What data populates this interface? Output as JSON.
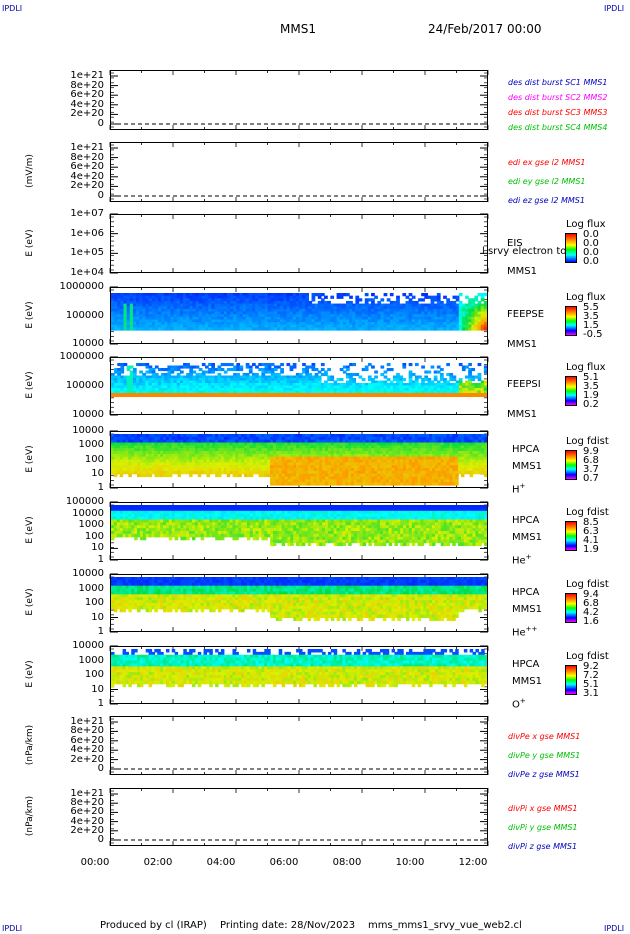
{
  "header": {
    "corner_label": "IPDLI",
    "spacecraft": "MMS1",
    "datetime": "24/Feb/2017 00:00"
  },
  "footer": {
    "produced_by": "Produced by cl (IRAP)",
    "printing_date": "Printing date: 28/Nov/2023",
    "script_name": "mms_mms1_srvy_vue_web2.cl"
  },
  "colors": {
    "mms1": "#0000c0",
    "mms2": "#ff00ff",
    "mms3": "#ff0000",
    "mms4": "#00c000",
    "x": "#ff0000",
    "y": "#00c000",
    "z": "#0000c0"
  },
  "chart_data": [
    {
      "type": "line",
      "panel": "des-dist",
      "ylabel": "",
      "yticks": [
        "1e+21",
        "8e+20",
        "6e+20",
        "4e+20",
        "2e+20",
        "0"
      ],
      "ylim": [
        0,
        1e+21
      ],
      "series": [
        {
          "name": "des dist burst SC1 MMS1",
          "values": []
        },
        {
          "name": "des dist burst SC2 MMS2",
          "values": []
        },
        {
          "name": "des dist burst SC3 MMS3",
          "values": []
        },
        {
          "name": "des dist burst SC4 MMS4",
          "values": []
        }
      ]
    },
    {
      "type": "line",
      "panel": "edi",
      "ylabel": "(mV/m)",
      "yticks": [
        "1e+21",
        "8e+20",
        "6e+20",
        "4e+20",
        "2e+20",
        "0"
      ],
      "ylim": [
        0,
        1e+21
      ],
      "series": [
        {
          "name": "edi ex gse l2 MMS1",
          "values": []
        },
        {
          "name": "edi ey gse l2 MMS1",
          "values": []
        },
        {
          "name": "edi ez gse l2 MMS1",
          "values": []
        }
      ]
    },
    {
      "type": "heatmap",
      "panel": "eis",
      "ylabel": "E (eV)",
      "yticks": [
        "1e+07",
        "1e+06",
        "1e+05",
        "1e+04"
      ],
      "side_labels": [
        "EIS",
        "MMS1"
      ],
      "overlay_text": "l srvy electron to",
      "colorbar_title": "Log flux",
      "colorbar_ticks": [
        "0.0",
        "0.0",
        "0.0",
        "0.0"
      ]
    },
    {
      "type": "heatmap",
      "panel": "feepse",
      "ylabel": "E (eV)",
      "yticks": [
        "1000000",
        "100000",
        "10000"
      ],
      "side_labels": [
        "FEEPSE",
        "MMS1"
      ],
      "colorbar_title": "Log flux",
      "colorbar_ticks": [
        "5.5",
        "3.5",
        "1.5",
        "-0.5"
      ]
    },
    {
      "type": "heatmap",
      "panel": "feepsi",
      "ylabel": "E (eV)",
      "yticks": [
        "1000000",
        "100000",
        "10000"
      ],
      "side_labels": [
        "FEEPSI",
        "MMS1"
      ],
      "colorbar_title": "Log flux",
      "colorbar_ticks": [
        "5.1",
        "3.5",
        "1.9",
        "0.2"
      ]
    },
    {
      "type": "heatmap",
      "panel": "hpca-h",
      "ylabel": "E (eV)",
      "yticks": [
        "10000",
        "1000",
        "100",
        "10",
        "1"
      ],
      "side_labels": [
        "HPCA",
        "MMS1",
        "H+"
      ],
      "colorbar_title": "Log fdist",
      "colorbar_ticks": [
        "9.9",
        "6.8",
        "3.7",
        "0.7"
      ]
    },
    {
      "type": "heatmap",
      "panel": "hpca-he",
      "ylabel": "E (eV)",
      "yticks": [
        "100000",
        "10000",
        "1000",
        "100",
        "10",
        "1"
      ],
      "side_labels": [
        "HPCA",
        "MMS1",
        "He+"
      ],
      "colorbar_title": "Log fdist",
      "colorbar_ticks": [
        "8.5",
        "6.3",
        "4.1",
        "1.9"
      ]
    },
    {
      "type": "heatmap",
      "panel": "hpca-hepp",
      "ylabel": "E (eV)",
      "yticks": [
        "10000",
        "1000",
        "100",
        "10",
        "1"
      ],
      "side_labels": [
        "HPCA",
        "MMS1",
        "He++"
      ],
      "colorbar_title": "Log fdist",
      "colorbar_ticks": [
        "9.4",
        "6.8",
        "4.2",
        "1.6"
      ]
    },
    {
      "type": "heatmap",
      "panel": "hpca-o",
      "ylabel": "E (eV)",
      "yticks": [
        "10000",
        "1000",
        "100",
        "10",
        "1"
      ],
      "side_labels": [
        "HPCA",
        "MMS1",
        "O+"
      ],
      "colorbar_title": "Log fdist",
      "colorbar_ticks": [
        "9.2",
        "7.2",
        "5.1",
        "3.1"
      ]
    },
    {
      "type": "line",
      "panel": "divpe",
      "ylabel": "(nPa/km)",
      "yticks": [
        "1e+21",
        "8e+20",
        "6e+20",
        "4e+20",
        "2e+20",
        "0"
      ],
      "ylim": [
        0,
        1e+21
      ],
      "series": [
        {
          "name": "divPe x gse MMS1",
          "values": []
        },
        {
          "name": "divPe y gse MMS1",
          "values": []
        },
        {
          "name": "divPe z gse MMS1",
          "values": []
        }
      ]
    },
    {
      "type": "line",
      "panel": "divpi",
      "ylabel": "(nPa/km)",
      "yticks": [
        "1e+21",
        "8e+20",
        "6e+20",
        "4e+20",
        "2e+20",
        "0"
      ],
      "ylim": [
        0,
        1e+21
      ],
      "series": [
        {
          "name": "divPi x gse MMS1",
          "values": []
        },
        {
          "name": "divPi y gse MMS1",
          "values": []
        },
        {
          "name": "divPi z gse MMS1",
          "values": []
        }
      ]
    }
  ],
  "xaxis": {
    "ticks": [
      "00:00",
      "02:00",
      "04:00",
      "06:00",
      "08:00",
      "10:00",
      "12:00"
    ],
    "range_hours": [
      0,
      12
    ]
  }
}
